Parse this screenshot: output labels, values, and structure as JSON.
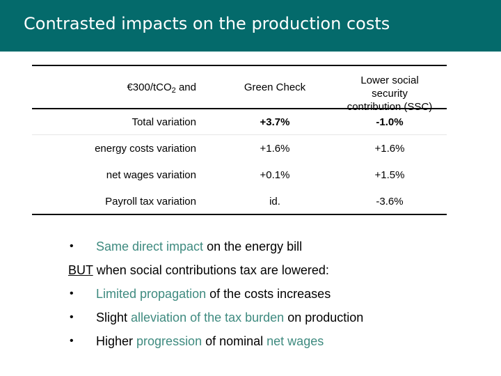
{
  "title": "Contrasted impacts on the production costs",
  "table": {
    "header": {
      "col1_main": "€300/tCO",
      "col1_sub": "2",
      "col1_tail": " and",
      "col2": "Green Check",
      "col3": "Lower social security contribution (SSC)"
    },
    "rows": [
      {
        "label": "Total variation",
        "green_check": "+3.7%",
        "ssc": "-1.0%"
      },
      {
        "label": "energy costs variation",
        "green_check": "+1.6%",
        "ssc": "+1.6%"
      },
      {
        "label": "net wages variation",
        "green_check": "+0.1%",
        "ssc": "+1.5%"
      },
      {
        "label": "Payroll tax variation",
        "green_check": "id.",
        "ssc": "-3.6%"
      }
    ]
  },
  "bullets": {
    "symbol": "•",
    "first": {
      "highlight": "Same direct impact",
      "rest": " on the energy bill"
    },
    "but_word": "BUT",
    "but_rest": " when social contributions tax are lowered:",
    "b1": {
      "highlight": "Limited propagation",
      "rest": " of the costs increases"
    },
    "b2": {
      "pre": "Slight ",
      "highlight": "alleviation of the tax burden",
      "rest": " on production"
    },
    "b3": {
      "pre": "Higher ",
      "highlight1": "progression",
      "mid": " of nominal ",
      "highlight2": "net wages"
    }
  },
  "colors": {
    "title_bar": "#046a6b",
    "highlight": "#3e8a7f"
  }
}
